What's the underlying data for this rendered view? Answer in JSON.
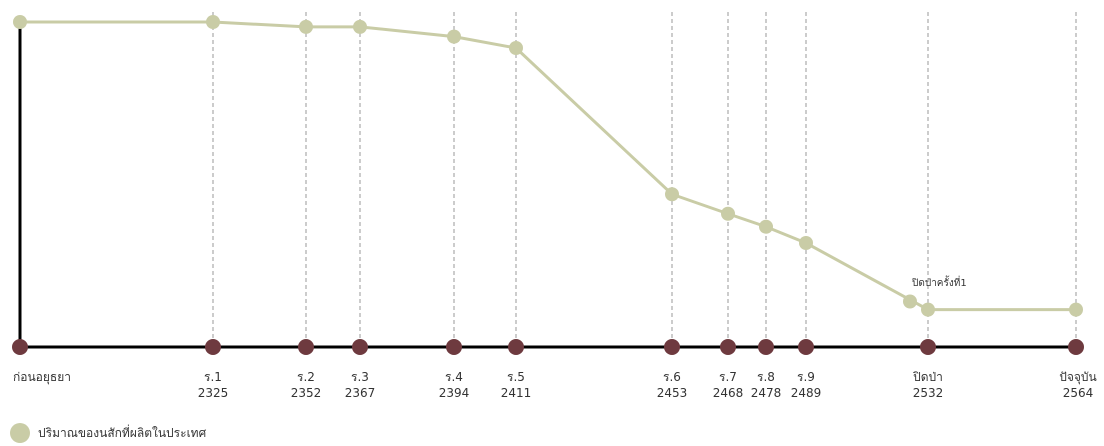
{
  "chart_data": {
    "type": "line",
    "title": "",
    "xlabel": "",
    "ylabel": "",
    "categories": [
      {
        "line1": "ก่อนอยุธยา",
        "line2": ""
      },
      {
        "line1": "ร.1",
        "line2": "2325"
      },
      {
        "line1": "ร.2",
        "line2": "2352"
      },
      {
        "line1": "ร.3",
        "line2": "2367"
      },
      {
        "line1": "ร.4",
        "line2": "2394"
      },
      {
        "line1": "ร.5",
        "line2": "2411"
      },
      {
        "line1": "ร.6",
        "line2": "2453"
      },
      {
        "line1": "ร.7",
        "line2": "2468"
      },
      {
        "line1": "ร.8",
        "line2": "2478"
      },
      {
        "line1": "ร.9",
        "line2": "2489"
      },
      {
        "line1": "ปิดป่า",
        "line2": "2532"
      },
      {
        "line1": "ปัจจุบัน",
        "line2": "2564"
      }
    ],
    "series": [
      {
        "name": "ปริมาณของนสักที่ผลิตในประเทศ",
        "color": "#c9cca6",
        "values": [
          100,
          100,
          98.5,
          98.5,
          95.5,
          92,
          47,
          41,
          37,
          32,
          11.5,
          11.5
        ]
      }
    ],
    "annotation": {
      "text": "ปิดป่าครั้งที่1",
      "value": 14
    },
    "ylim": [
      0,
      100
    ],
    "grid": true,
    "timeline_marker_color": "#6e3a3f",
    "axis_color": "#000000"
  }
}
